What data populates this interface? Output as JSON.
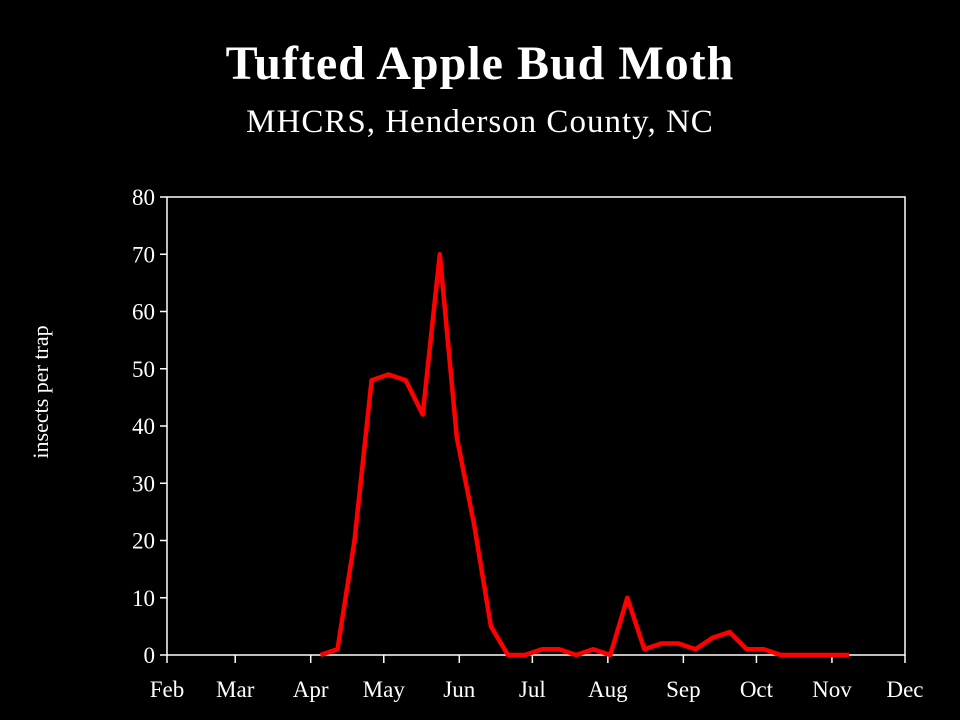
{
  "chart_data": {
    "type": "line",
    "title": "Tufted Apple Bud Moth",
    "subtitle": "MHCRS, Henderson County, NC",
    "xlabel": "",
    "ylabel": "insects per trap",
    "ylim": [
      0,
      80
    ],
    "yticks": [
      0,
      10,
      20,
      30,
      40,
      50,
      60,
      70,
      80
    ],
    "xticks": [
      "Feb",
      "Mar",
      "Apr",
      "May",
      "Jun",
      "Jul",
      "Aug",
      "Sep",
      "Oct",
      "Nov",
      "Dec"
    ],
    "grid": false,
    "line_color": "#ff0000",
    "series": [
      {
        "x": [
          "Apr 5",
          "Apr 12",
          "Apr 19",
          "Apr 26",
          "May 3",
          "May 10",
          "May 17",
          "May 24",
          "May 31",
          "Jun 7",
          "Jun 14",
          "Jun 21",
          "Jun 28",
          "Jul 5",
          "Jul 12",
          "Jul 19",
          "Jul 26",
          "Aug 2",
          "Aug 9",
          "Aug 16",
          "Aug 23",
          "Aug 30",
          "Sep 6",
          "Sep 13",
          "Sep 20",
          "Sep 27",
          "Oct 4",
          "Oct 11",
          "Oct 18",
          "Oct 25",
          "Nov 1",
          "Nov 8"
        ],
        "values": [
          0,
          1,
          20,
          48,
          49,
          48,
          42,
          70,
          38,
          23,
          5,
          0,
          0,
          1,
          1,
          0,
          1,
          0,
          10,
          1,
          2,
          2,
          1,
          3,
          4,
          1,
          1,
          0,
          0,
          0,
          0,
          0
        ]
      }
    ]
  }
}
